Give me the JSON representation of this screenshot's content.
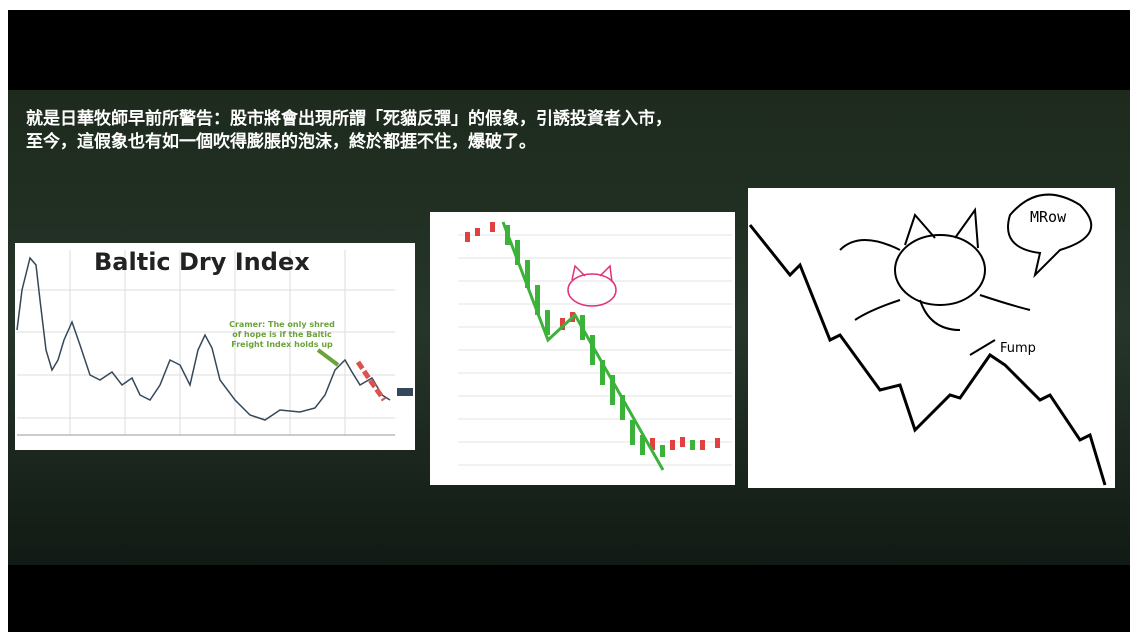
{
  "header": {
    "lines": [
      "就是日華牧師早前所警告：股市將會出現所謂「死貓反彈」的假象，引誘投資者入市，",
      "至今，這假象也有如一個吹得膨脹的泡沫，終於都捱不住，爆破了。"
    ]
  },
  "panels": [
    {
      "title": "Baltic Dry Index",
      "annotation": [
        "Cramer: The only shred",
        "of hope is if the Baltic",
        "Freight Index holds up"
      ]
    },
    {},
    {
      "speech": "MRow",
      "sound": "Fump"
    }
  ]
}
